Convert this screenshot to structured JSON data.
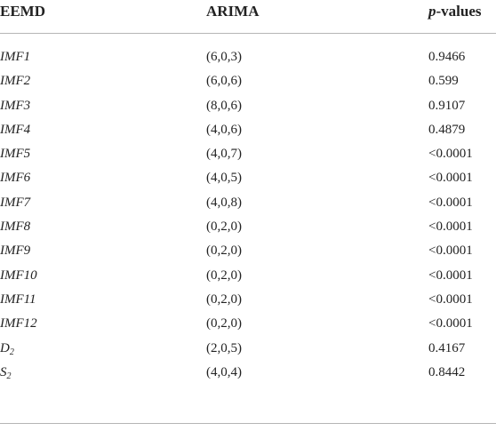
{
  "table": {
    "headers": {
      "col1": "EEMD",
      "col2": "ARIMA",
      "col3_p": "p",
      "col3_rest": "-values"
    },
    "rows": [
      {
        "name": "IMF1",
        "sub": "",
        "arima": "(6,0,3)",
        "p": "0.9466"
      },
      {
        "name": "IMF2",
        "sub": "",
        "arima": "(6,0,6)",
        "p": "0.599"
      },
      {
        "name": "IMF3",
        "sub": "",
        "arima": "(8,0,6)",
        "p": "0.9107"
      },
      {
        "name": "IMF4",
        "sub": "",
        "arima": "(4,0,6)",
        "p": "0.4879"
      },
      {
        "name": "IMF5",
        "sub": "",
        "arima": "(4,0,7)",
        "p": "<0.0001"
      },
      {
        "name": "IMF6",
        "sub": "",
        "arima": "(4,0,5)",
        "p": "<0.0001"
      },
      {
        "name": "IMF7",
        "sub": "",
        "arima": "(4,0,8)",
        "p": "<0.0001"
      },
      {
        "name": "IMF8",
        "sub": "",
        "arima": "(0,2,0)",
        "p": "<0.0001"
      },
      {
        "name": "IMF9",
        "sub": "",
        "arima": "(0,2,0)",
        "p": "<0.0001"
      },
      {
        "name": "IMF10",
        "sub": "",
        "arima": "(0,2,0)",
        "p": "<0.0001"
      },
      {
        "name": "IMF11",
        "sub": "",
        "arima": "(0,2,0)",
        "p": "<0.0001"
      },
      {
        "name": "IMF12",
        "sub": "",
        "arima": "(0,2,0)",
        "p": "<0.0001"
      },
      {
        "name": "D",
        "sub": "2",
        "arima": "(2,0,5)",
        "p": "0.4167"
      },
      {
        "name": "S",
        "sub": "2",
        "arima": "(4,0,4)",
        "p": "0.8442"
      }
    ]
  }
}
